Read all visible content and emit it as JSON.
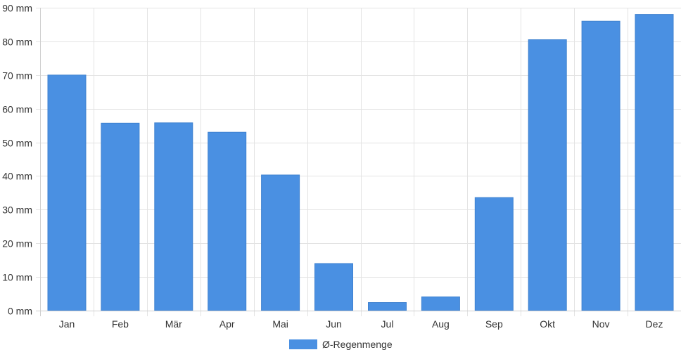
{
  "chart_data": {
    "type": "bar",
    "categories": [
      "Jan",
      "Feb",
      "Mär",
      "Apr",
      "Mai",
      "Jun",
      "Jul",
      "Aug",
      "Sep",
      "Okt",
      "Nov",
      "Dez"
    ],
    "series": [
      {
        "name": "Ø-Regenmenge",
        "values": [
          70,
          55.7,
          55.8,
          53,
          40.3,
          14,
          2.4,
          4.1,
          33.6,
          80.5,
          86,
          88
        ],
        "color": "#4a90e2"
      }
    ],
    "y_unit": "mm",
    "ylim": [
      0,
      90
    ],
    "y_ticks": [
      0,
      10,
      20,
      30,
      40,
      50,
      60,
      70,
      80,
      90
    ],
    "y_tick_labels": [
      "0 mm",
      "10 mm",
      "20 mm",
      "30 mm",
      "40 mm",
      "50 mm",
      "60 mm",
      "70 mm",
      "80 mm",
      "90 mm"
    ],
    "grid": true,
    "legend_position": "bottom-center"
  }
}
